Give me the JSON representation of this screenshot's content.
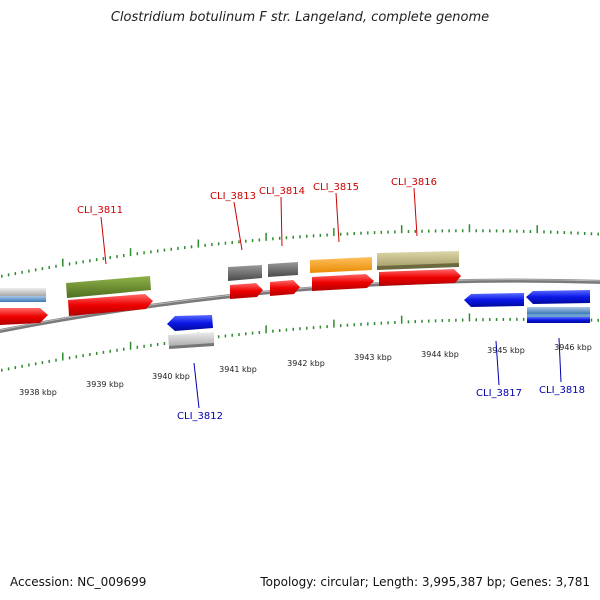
{
  "title": "Clostridium botulinum F str. Langeland, complete genome",
  "footer": {
    "accession": "Accession: NC_009699",
    "summary": "Topology: circular; Length: 3,995,387 bp; Genes: 3,781"
  },
  "colors": {
    "forward_label": "#cc0000",
    "reverse_label": "#0000aa",
    "tick": "#2e8b2e",
    "backbone": "#808080"
  },
  "scale": {
    "unit": "kbp",
    "labels": [
      "3938 kbp",
      "3939 kbp",
      "3940 kbp",
      "3941 kbp",
      "3942 kbp",
      "3943 kbp",
      "3944 kbp",
      "3945 kbp",
      "3946 kbp"
    ]
  },
  "gene_labels": [
    {
      "name": "CLI_3811",
      "strand": "forward"
    },
    {
      "name": "CLI_3812",
      "strand": "reverse"
    },
    {
      "name": "CLI_3813",
      "strand": "forward"
    },
    {
      "name": "CLI_3814",
      "strand": "forward"
    },
    {
      "name": "CLI_3815",
      "strand": "forward"
    },
    {
      "name": "CLI_3816",
      "strand": "forward"
    },
    {
      "name": "CLI_3817",
      "strand": "reverse"
    },
    {
      "name": "CLI_3818",
      "strand": "reverse"
    }
  ]
}
